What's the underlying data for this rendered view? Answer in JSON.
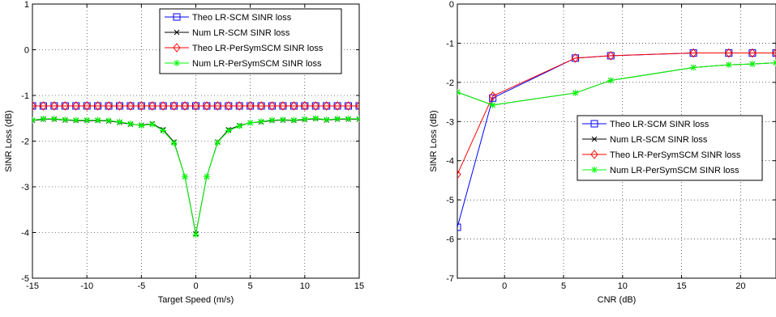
{
  "chart_data": [
    {
      "type": "line",
      "title": "",
      "xlabel": "Target Speed (m/s)",
      "ylabel": "SINR Loss (dB)",
      "xlim": [
        -15,
        15
      ],
      "ylim": [
        -5,
        1
      ],
      "xticks": [
        -15,
        -10,
        -5,
        0,
        5,
        10,
        15
      ],
      "yticks": [
        -5,
        -4,
        -3,
        -2,
        -1,
        0,
        1
      ],
      "grid": true,
      "legend_position": "top-right",
      "x": [
        -15,
        -14,
        -13,
        -12,
        -11,
        -10,
        -9,
        -8,
        -7,
        -6,
        -5,
        -4,
        -3,
        -2,
        -1,
        0,
        1,
        2,
        3,
        4,
        5,
        6,
        7,
        8,
        9,
        10,
        11,
        12,
        13,
        14,
        15
      ],
      "series": [
        {
          "name": "Theo LR-SCM SINR loss",
          "color": "#0000ff",
          "marker": "square",
          "values": [
            -1.23,
            -1.23,
            -1.23,
            -1.23,
            -1.23,
            -1.23,
            -1.23,
            -1.23,
            -1.23,
            -1.23,
            -1.23,
            -1.23,
            -1.23,
            -1.23,
            -1.23,
            -1.23,
            -1.23,
            -1.23,
            -1.23,
            -1.23,
            -1.23,
            -1.23,
            -1.23,
            -1.23,
            -1.23,
            -1.23,
            -1.23,
            -1.23,
            -1.23,
            -1.23,
            -1.23
          ]
        },
        {
          "name": "Num LR-SCM SINR loss",
          "color": "#000000",
          "marker": "x",
          "values": [
            -1.55,
            -1.52,
            -1.52,
            -1.54,
            -1.55,
            -1.55,
            -1.55,
            -1.56,
            -1.59,
            -1.63,
            -1.65,
            -1.62,
            -1.75,
            -2.02,
            -2.78,
            -4.03,
            -2.78,
            -2.02,
            -1.75,
            -1.66,
            -1.6,
            -1.58,
            -1.55,
            -1.54,
            -1.55,
            -1.53,
            -1.51,
            -1.54,
            -1.52,
            -1.52,
            -1.52
          ]
        },
        {
          "name": "Theo LR-PerSymSCM SINR loss",
          "color": "#ff0000",
          "marker": "diamond",
          "values": [
            -1.23,
            -1.23,
            -1.23,
            -1.23,
            -1.23,
            -1.23,
            -1.23,
            -1.23,
            -1.23,
            -1.23,
            -1.23,
            -1.23,
            -1.23,
            -1.23,
            -1.23,
            -1.23,
            -1.23,
            -1.23,
            -1.23,
            -1.23,
            -1.23,
            -1.23,
            -1.23,
            -1.23,
            -1.23,
            -1.23,
            -1.23,
            -1.23,
            -1.23,
            -1.23,
            -1.23
          ]
        },
        {
          "name": "Num LR-PerSymSCM SINR loss",
          "color": "#00ff00",
          "marker": "star",
          "values": [
            -1.54,
            -1.51,
            -1.51,
            -1.53,
            -1.54,
            -1.54,
            -1.54,
            -1.55,
            -1.58,
            -1.62,
            -1.66,
            -1.63,
            -1.77,
            -2.04,
            -2.78,
            -4.05,
            -2.78,
            -2.03,
            -1.77,
            -1.67,
            -1.6,
            -1.57,
            -1.54,
            -1.53,
            -1.54,
            -1.52,
            -1.5,
            -1.53,
            -1.51,
            -1.51,
            -1.51
          ]
        }
      ]
    },
    {
      "type": "line",
      "title": "",
      "xlabel": "CNR (dB)",
      "ylabel": "SINR Loss (dB)",
      "xlim": [
        -4,
        23
      ],
      "ylim": [
        -7,
        0
      ],
      "xticks": [
        0,
        5,
        10,
        15,
        20
      ],
      "yticks": [
        -7,
        -6,
        -5,
        -4,
        -3,
        -2,
        -1,
        0
      ],
      "grid": true,
      "legend_position": "center-right",
      "x": [
        -4,
        -1,
        6,
        9,
        16,
        19,
        21,
        23
      ],
      "series": [
        {
          "name": "Theo LR-SCM SINR loss",
          "color": "#0000ff",
          "marker": "square",
          "values": [
            -5.7,
            -2.4,
            -1.38,
            -1.32,
            -1.25,
            -1.25,
            -1.25,
            -1.25
          ]
        },
        {
          "name": "Num LR-SCM SINR loss",
          "color": "#000000",
          "marker": "x",
          "values": [
            -2.25,
            -2.58,
            -2.27,
            -1.95,
            -1.62,
            -1.55,
            -1.53,
            -1.5
          ]
        },
        {
          "name": "Theo LR-PerSymSCM SINR loss",
          "color": "#ff0000",
          "marker": "diamond",
          "values": [
            -4.35,
            -2.35,
            -1.38,
            -1.32,
            -1.25,
            -1.25,
            -1.25,
            -1.25
          ]
        },
        {
          "name": "Num LR-PerSymSCM SINR loss",
          "color": "#00ff00",
          "marker": "star",
          "values": [
            -2.25,
            -2.58,
            -2.27,
            -1.95,
            -1.62,
            -1.55,
            -1.53,
            -1.5
          ]
        }
      ]
    }
  ]
}
